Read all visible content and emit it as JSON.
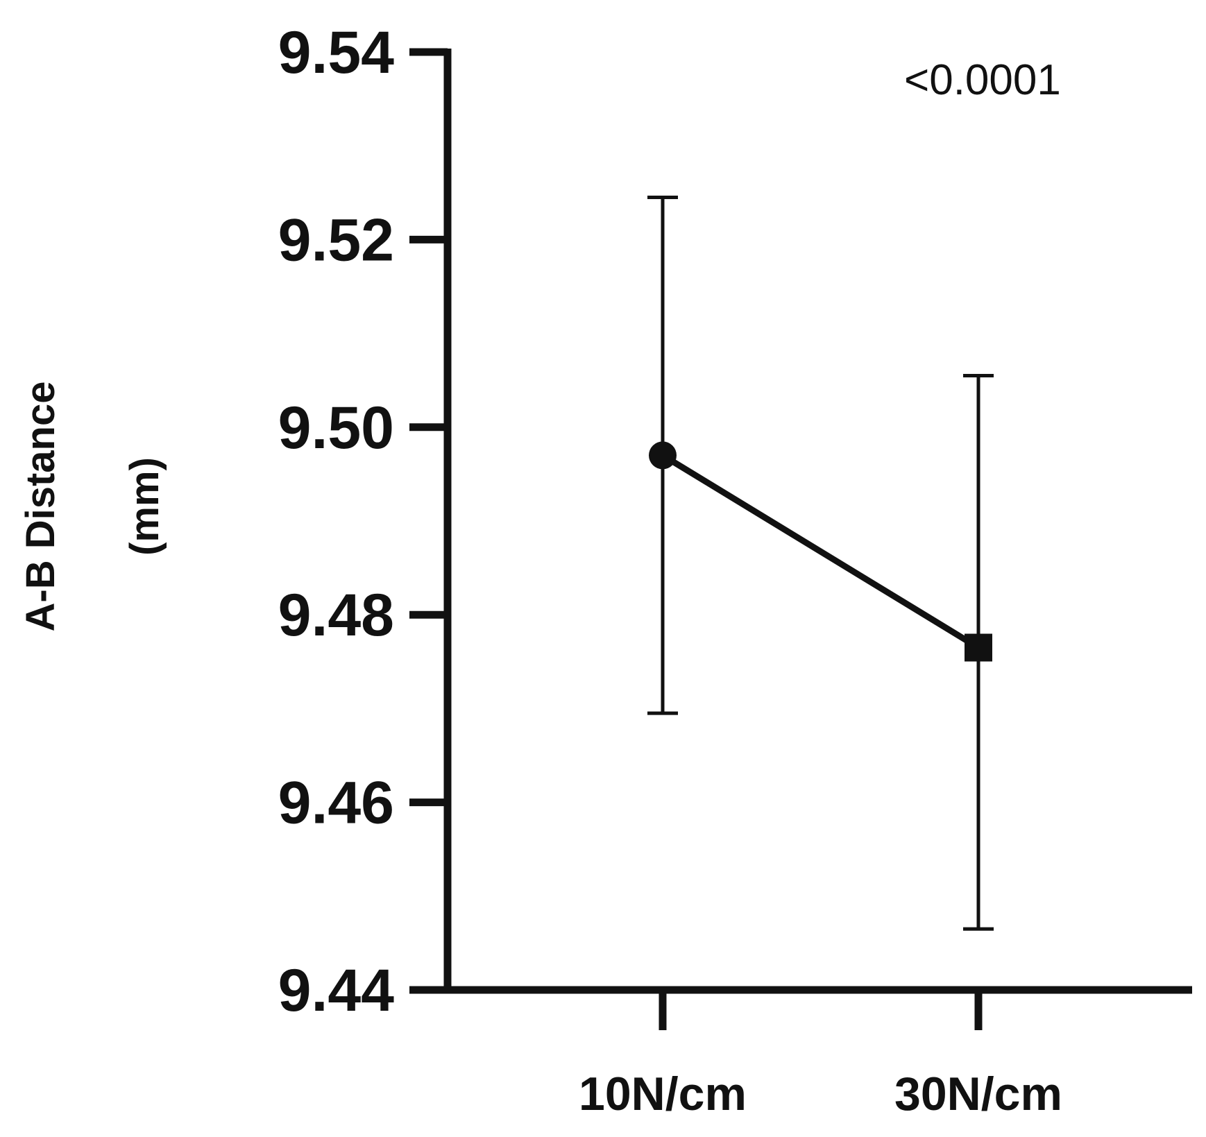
{
  "chart_data": {
    "type": "line",
    "categories": [
      "10N/cm",
      "30N/cm"
    ],
    "series": [
      {
        "marker_shapes": [
          "circle",
          "square"
        ],
        "values": [
          9.497,
          9.4765
        ],
        "error_upper": [
          9.5245,
          9.5055
        ],
        "error_lower": [
          9.4695,
          9.4465
        ]
      }
    ],
    "ylabel_lines": [
      "A-B Distance",
      "(mm)"
    ],
    "xlabel": "",
    "ylim": [
      9.44,
      9.54
    ],
    "yticks": [
      9.44,
      9.46,
      9.48,
      9.5,
      9.52,
      9.54
    ],
    "ytick_labels": [
      "9.44",
      "9.46",
      "9.48",
      "9.50",
      "9.52",
      "9.54"
    ],
    "annotation": "<0.0001",
    "grid": false,
    "legend": "none",
    "colors": {
      "line": "#111111",
      "marker": "#111111",
      "axis": "#111111"
    }
  }
}
